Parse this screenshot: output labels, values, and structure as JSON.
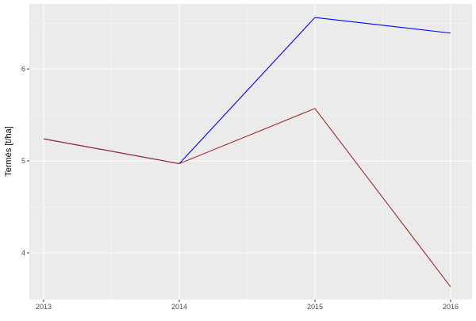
{
  "chart_data": {
    "type": "line",
    "title": "",
    "xlabel": "",
    "ylabel": "Termés [t/ha]",
    "x": [
      2013,
      2014,
      2015,
      2016
    ],
    "x_tick_labels": [
      "2013",
      "2014",
      "2015",
      "2016"
    ],
    "y_ticks": [
      4,
      5,
      6
    ],
    "y_tick_labels": [
      "4",
      "5",
      "6"
    ],
    "xlim": [
      2012.9,
      2016.15
    ],
    "ylim": [
      3.49,
      6.71
    ],
    "grid": true,
    "series": [
      {
        "color": "#0000ff",
        "values": [
          5.24,
          4.97,
          6.56,
          6.39
        ]
      },
      {
        "color": "#a52a2a",
        "values": [
          5.24,
          4.97,
          5.57,
          3.63
        ]
      }
    ]
  }
}
